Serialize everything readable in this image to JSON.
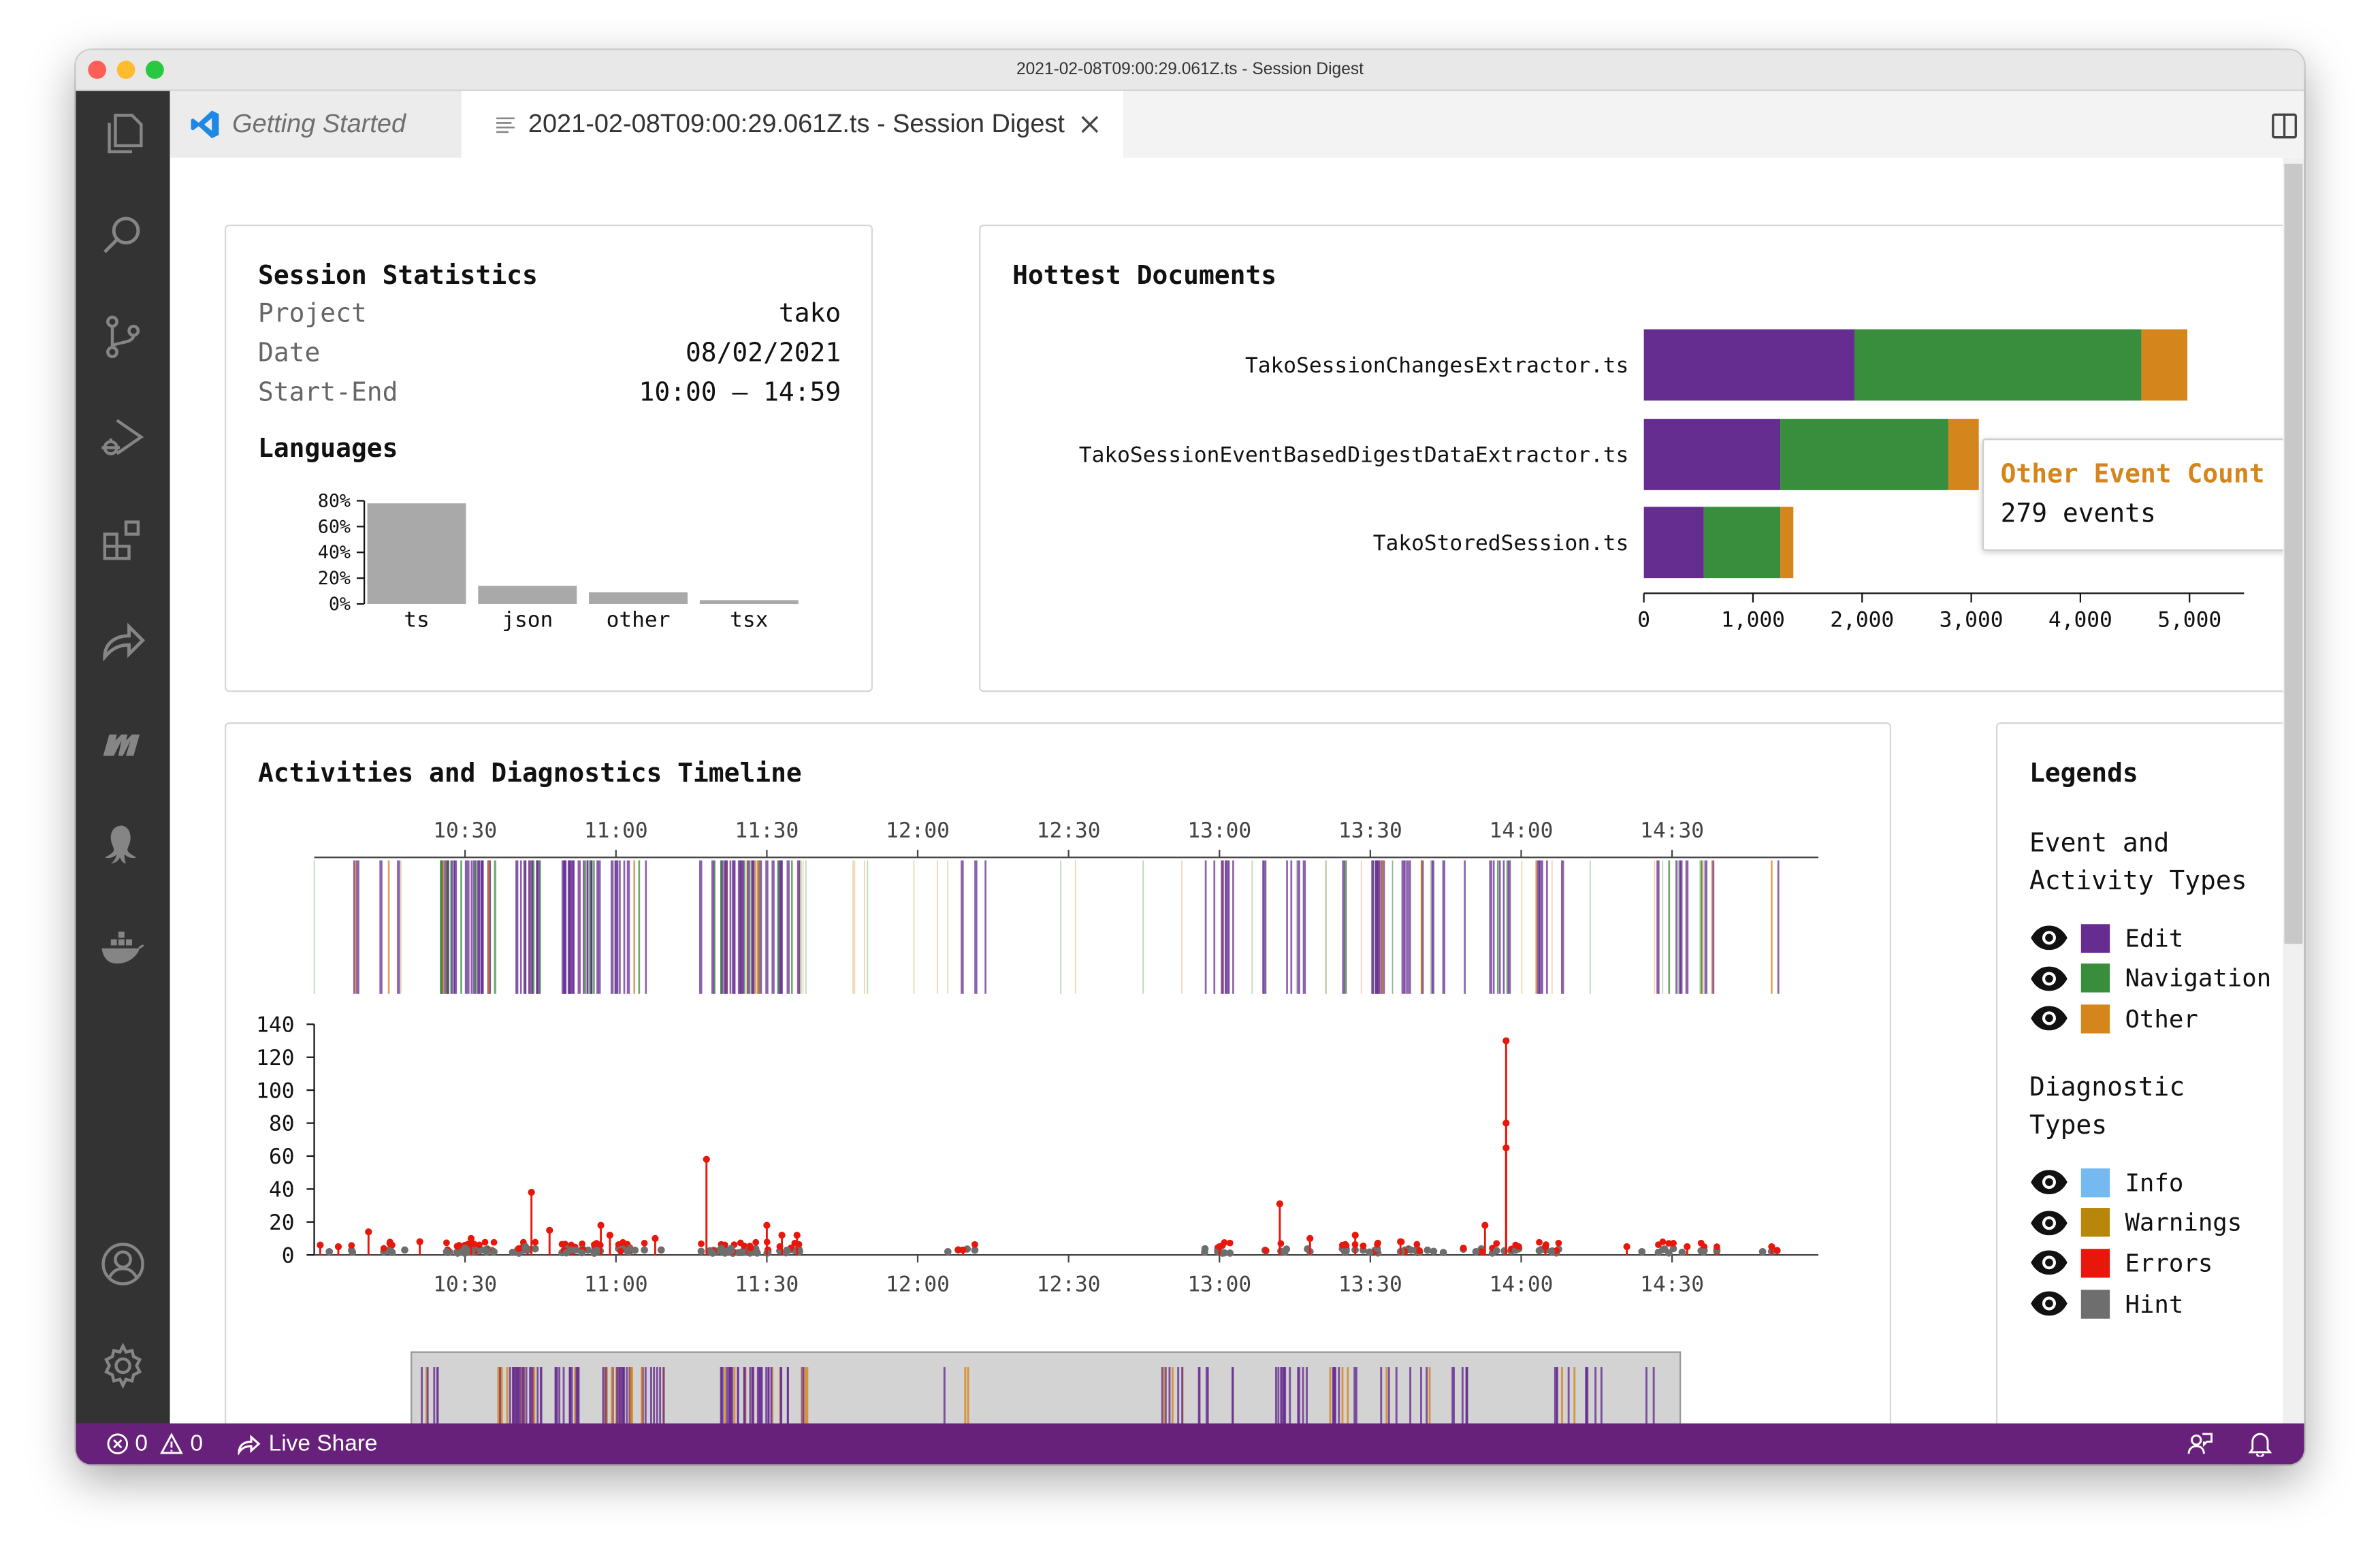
{
  "window": {
    "title": "2021-02-08T09:00:29.061Z.ts - Session Digest"
  },
  "tabs": [
    {
      "label": "Getting Started",
      "icon": "vscode-logo-icon",
      "active": false
    },
    {
      "label": "2021-02-08T09:00:29.061Z.ts - Session Digest",
      "icon": "preview-icon",
      "active": true
    }
  ],
  "activity_bar": {
    "icons": [
      "explorer-icon",
      "search-icon",
      "source-control-icon",
      "run-debug-icon",
      "extensions-icon",
      "live-share-icon",
      "tako-m-icon",
      "octopus-icon",
      "docker-icon"
    ],
    "bottom_icons": [
      "account-icon",
      "settings-gear-icon"
    ]
  },
  "session_statistics": {
    "title": "Session Statistics",
    "rows": [
      {
        "label": "Project",
        "value": "tako"
      },
      {
        "label": "Date",
        "value": "08/02/2021"
      },
      {
        "label": "Start-End",
        "value": "10:00 – 14:59"
      }
    ],
    "languages_title": "Languages"
  },
  "hottest_documents": {
    "title": "Hottest Documents",
    "tooltip": {
      "title": "Other Event Count",
      "value": "279 events"
    }
  },
  "timeline": {
    "title": "Activities and Diagnostics Timeline"
  },
  "legends": {
    "title": "Legends",
    "event_section": [
      "Event and",
      "Activity Types"
    ],
    "event_items": [
      {
        "label": "Edit",
        "color": "#662d91"
      },
      {
        "label": "Navigation",
        "color": "#388e3c"
      },
      {
        "label": "Other",
        "color": "#d4861c"
      }
    ],
    "diagnostic_section": [
      "Diagnostic",
      "Types"
    ],
    "diagnostic_items": [
      {
        "label": "Info",
        "color": "#74b9f0"
      },
      {
        "label": "Warnings",
        "color": "#b8860b"
      },
      {
        "label": "Errors",
        "color": "#e8170c"
      },
      {
        "label": "Hint",
        "color": "#6e6e6e"
      }
    ]
  },
  "status_bar": {
    "errors": "0",
    "warnings": "0",
    "live_share": "Live Share"
  },
  "chart_data": [
    {
      "type": "bar",
      "title": "Languages",
      "categories": [
        "ts",
        "json",
        "other",
        "tsx"
      ],
      "values": [
        78,
        14,
        9,
        3
      ],
      "yticks": [
        "80%",
        "60%",
        "40%",
        "20%",
        "0%"
      ],
      "ylim": [
        0,
        80
      ],
      "color": "#a9a9a9"
    },
    {
      "type": "bar",
      "orientation": "horizontal",
      "stacked": true,
      "title": "Hottest Documents",
      "categories": [
        "TakoSessionChangesExtractor.ts",
        "TakoSessionEventBasedDigestDataExtractor.ts",
        "TakoStoredSession.ts"
      ],
      "series": [
        {
          "name": "Edit",
          "color": "#662d91",
          "values": [
            1930,
            1250,
            550
          ]
        },
        {
          "name": "Navigation",
          "color": "#388e3c",
          "values": [
            2630,
            1540,
            700
          ]
        },
        {
          "name": "Other",
          "color": "#d4861c",
          "values": [
            420,
            279,
            120
          ]
        }
      ],
      "xticks": [
        "0",
        "1,000",
        "2,000",
        "3,000",
        "4,000",
        "5,000"
      ],
      "xlim": [
        0,
        5500
      ]
    },
    {
      "type": "line",
      "title": "Activities and Diagnostics Timeline",
      "x_tick_labels": [
        "10:30",
        "11:00",
        "11:30",
        "12:00",
        "12:30",
        "13:00",
        "13:30",
        "14:00",
        "14:30"
      ],
      "y_tick_labels": [
        "140",
        "120",
        "100",
        "80",
        "60",
        "40",
        "20",
        "0"
      ],
      "ylim": [
        0,
        140
      ],
      "series": [
        {
          "name": "Errors",
          "color": "#e8170c",
          "points": [
            [
              10.02,
              6
            ],
            [
              10.08,
              5
            ],
            [
              10.18,
              14
            ],
            [
              10.35,
              8
            ],
            [
              10.52,
              10
            ],
            [
              10.72,
              38
            ],
            [
              10.78,
              15
            ],
            [
              10.95,
              18
            ],
            [
              10.98,
              12
            ],
            [
              11.13,
              10
            ],
            [
              11.3,
              58
            ],
            [
              11.5,
              18
            ],
            [
              11.55,
              12
            ],
            [
              11.6,
              12
            ],
            [
              12.15,
              3
            ],
            [
              13.0,
              5
            ],
            [
              13.2,
              31
            ],
            [
              13.3,
              10
            ],
            [
              13.45,
              12
            ],
            [
              13.6,
              8
            ],
            [
              13.88,
              18
            ],
            [
              13.95,
              130
            ],
            [
              13.95,
              80
            ],
            [
              13.95,
              65
            ],
            [
              14.08,
              5
            ],
            [
              14.35,
              5
            ],
            [
              14.55,
              5
            ],
            [
              14.83,
              5
            ]
          ]
        },
        {
          "name": "Hint",
          "color": "#6e6e6e",
          "points": [
            [
              10.05,
              2
            ],
            [
              10.3,
              3
            ],
            [
              10.5,
              4
            ],
            [
              10.7,
              5
            ],
            [
              10.85,
              3
            ],
            [
              11.15,
              3
            ],
            [
              11.35,
              4
            ],
            [
              11.6,
              3
            ],
            [
              12.1,
              2
            ],
            [
              13.0,
              2
            ],
            [
              13.3,
              2
            ],
            [
              13.6,
              2
            ],
            [
              13.85,
              2
            ],
            [
              14.1,
              2
            ],
            [
              14.4,
              2
            ],
            [
              14.8,
              2
            ]
          ]
        }
      ]
    }
  ]
}
